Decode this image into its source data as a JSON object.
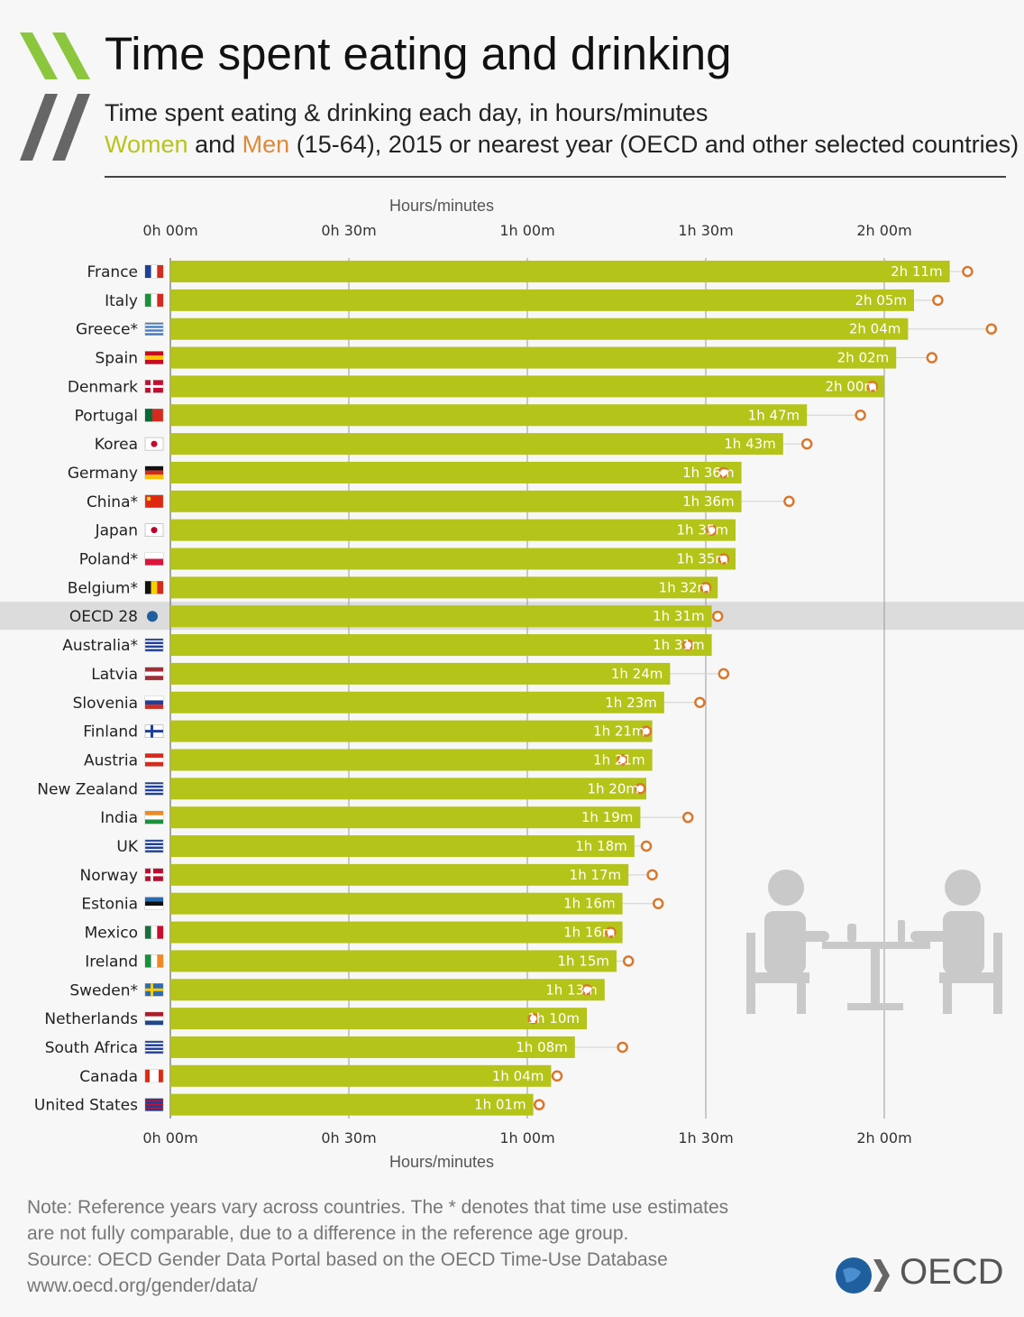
{
  "header": {
    "title": "Time spent eating and drinking",
    "subtitle_line1": "Time spent eating & drinking each day, in hours/minutes",
    "women_word": "Women",
    "and_word": "and",
    "men_word": "Men",
    "subtitle_rest": "(15-64), 2015 or nearest year (OECD and other selected countries)"
  },
  "footer": {
    "note_line1": "Note: Reference years vary across countries. The * denotes that time use estimates",
    "note_line2": "are not fully comparable, due to a difference in the reference age group.",
    "source_line": "Source: OECD Gender Data Portal based on the OECD Time-Use Database",
    "url": "www.oecd.org/gender/data/",
    "brand": "OECD"
  },
  "colors": {
    "women_bar": "#b4c419",
    "men_marker": "#d9772c",
    "highlight_row": "#dcdcdc",
    "background": "#f7f7f7"
  },
  "chart_data": {
    "type": "bar",
    "orientation": "horizontal",
    "axis_title": "Hours/minutes",
    "xlim": [
      0,
      136
    ],
    "x_unit": "minutes",
    "x_ticks": [
      0,
      30,
      60,
      90,
      120
    ],
    "x_tick_labels": [
      "0h 00m",
      "0h 30m",
      "1h 00m",
      "1h 30m",
      "2h 00m"
    ],
    "categories": [
      "France",
      "Italy",
      "Greece*",
      "Spain",
      "Denmark",
      "Portugal",
      "Korea",
      "Germany",
      "China*",
      "Japan",
      "Poland*",
      "Belgium*",
      "OECD 28",
      "Australia*",
      "Latvia",
      "Slovenia",
      "Finland",
      "Austria",
      "New Zealand",
      "India",
      "UK",
      "Norway",
      "Estonia",
      "Mexico",
      "Ireland",
      "Sweden*",
      "Netherlands",
      "South Africa",
      "Canada",
      "United States"
    ],
    "highlight": "OECD 28",
    "series": [
      {
        "name": "Women",
        "values": [
          131,
          125,
          124,
          122,
          120,
          107,
          103,
          96,
          96,
          95,
          95,
          92,
          91,
          91,
          84,
          83,
          81,
          81,
          80,
          79,
          78,
          77,
          76,
          76,
          75,
          73,
          70,
          68,
          64,
          61
        ],
        "labels": [
          "2h 11m",
          "2h 05m",
          "2h 04m",
          "2h 02m",
          "2h 00m",
          "1h 47m",
          "1h 43m",
          "1h 36m",
          "1h 36m",
          "1h 35m",
          "1h 35m",
          "1h 32m",
          "1h 31m",
          "1h 31m",
          "1h 24m",
          "1h 23m",
          "1h 21m",
          "1h 21m",
          "1h 20m",
          "1h 19m",
          "1h 18m",
          "1h 17m",
          "1h 16m",
          "1h 16m",
          "1h 15m",
          "1h 13m",
          "1h 10m",
          "1h 08m",
          "1h 04m",
          "1h 01m"
        ]
      },
      {
        "name": "Men",
        "values": [
          134,
          129,
          138,
          128,
          118,
          116,
          107,
          93,
          104,
          91,
          93,
          90,
          92,
          87,
          93,
          89,
          80,
          76,
          79,
          87,
          80,
          81,
          82,
          74,
          77,
          70,
          61,
          76,
          65,
          62
        ]
      }
    ],
    "flag_icons": [
      "france-flag-icon",
      "italy-flag-icon",
      "greece-flag-icon",
      "spain-flag-icon",
      "denmark-flag-icon",
      "portugal-flag-icon",
      "korea-flag-icon",
      "germany-flag-icon",
      "china-flag-icon",
      "japan-flag-icon",
      "poland-flag-icon",
      "belgium-flag-icon",
      "oecd-globe-icon",
      "australia-flag-icon",
      "latvia-flag-icon",
      "slovenia-flag-icon",
      "finland-flag-icon",
      "austria-flag-icon",
      "new-zealand-flag-icon",
      "india-flag-icon",
      "uk-flag-icon",
      "norway-flag-icon",
      "estonia-flag-icon",
      "mexico-flag-icon",
      "ireland-flag-icon",
      "sweden-flag-icon",
      "netherlands-flag-icon",
      "south-africa-flag-icon",
      "canada-flag-icon",
      "united-states-flag-icon"
    ]
  }
}
